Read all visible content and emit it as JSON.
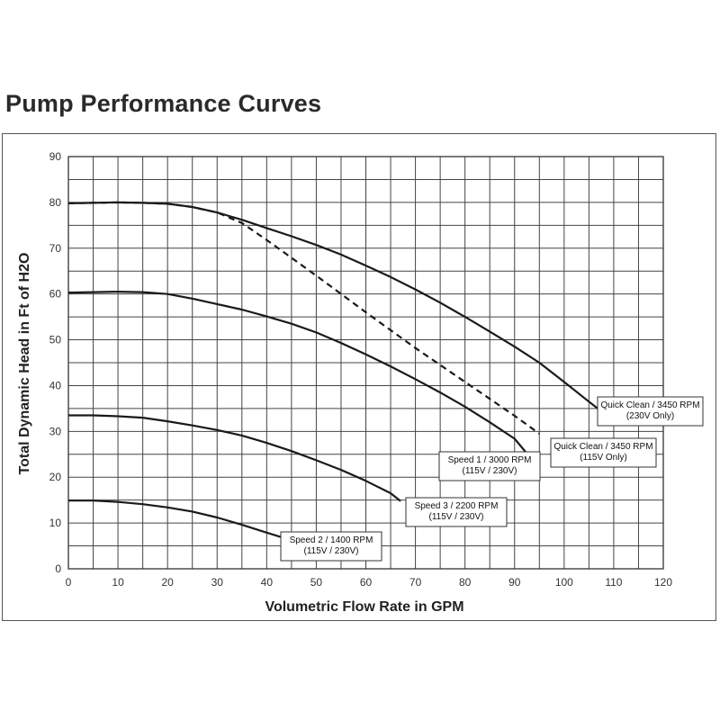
{
  "page_title": "Pump Performance Curves",
  "chart_data": {
    "type": "line",
    "xlabel": "Volumetric Flow Rate in GPM",
    "ylabel": "Total Dynamic Head in Ft of H2O",
    "xlim": [
      0,
      120
    ],
    "ylim": [
      0,
      90
    ],
    "x_ticks": [
      0,
      10,
      20,
      30,
      40,
      50,
      60,
      70,
      80,
      90,
      100,
      110,
      120
    ],
    "y_ticks": [
      0,
      10,
      20,
      30,
      40,
      50,
      60,
      70,
      80,
      90
    ],
    "grid_x_step": 5,
    "grid_y_step": 5,
    "grid": true,
    "series": [
      {
        "name": "Quick Clean / 3450 RPM",
        "label_lines": [
          "Quick Clean / 3450 RPM",
          "(230V Only)"
        ],
        "style": "solid",
        "x": [
          0,
          5,
          10,
          15,
          20,
          25,
          30,
          35,
          40,
          45,
          50,
          55,
          60,
          65,
          70,
          75,
          80,
          85,
          90,
          95,
          100,
          105,
          107
        ],
        "y": [
          79.8,
          79.9,
          80.0,
          79.9,
          79.7,
          79.0,
          77.8,
          76.2,
          74.4,
          72.6,
          70.7,
          68.6,
          66.2,
          63.7,
          61.0,
          58.1,
          55.0,
          51.8,
          48.5,
          45.0,
          40.8,
          36.5,
          34.8
        ]
      },
      {
        "name": "Quick Clean / 3450 RPM",
        "label_lines": [
          "Quick Clean / 3450 RPM",
          "(115V Only)"
        ],
        "style": "dashed",
        "x": [
          0,
          5,
          10,
          15,
          20,
          25,
          30,
          35,
          40,
          50,
          60,
          70,
          80,
          90,
          95
        ],
        "y": [
          79.8,
          79.9,
          80.0,
          79.9,
          79.7,
          79.0,
          77.8,
          75.5,
          71.8,
          64.0,
          56.0,
          48.2,
          40.8,
          33.4,
          29.5
        ]
      },
      {
        "name": "Speed 1 / 3000 RPM",
        "label_lines": [
          "Speed 1 / 3000 RPM",
          "(115V / 230V)"
        ],
        "style": "solid",
        "x": [
          0,
          5,
          10,
          15,
          20,
          25,
          30,
          35,
          40,
          45,
          50,
          55,
          60,
          65,
          70,
          75,
          80,
          85,
          90,
          93
        ],
        "y": [
          60.3,
          60.4,
          60.5,
          60.4,
          60.0,
          59.0,
          57.8,
          56.6,
          55.1,
          53.5,
          51.6,
          49.3,
          46.8,
          44.2,
          41.4,
          38.5,
          35.4,
          32.0,
          28.4,
          24.5
        ]
      },
      {
        "name": "Speed 3 / 2200 RPM",
        "label_lines": [
          "Speed 3 / 2200 RPM",
          "(115V / 230V)"
        ],
        "style": "solid",
        "x": [
          0,
          5,
          10,
          15,
          20,
          25,
          30,
          35,
          40,
          45,
          50,
          55,
          60,
          65,
          67
        ],
        "y": [
          33.5,
          33.5,
          33.3,
          33.0,
          32.2,
          31.3,
          30.3,
          29.1,
          27.5,
          25.7,
          23.7,
          21.6,
          19.2,
          16.5,
          14.8
        ]
      },
      {
        "name": "Speed 2 / 1400 RPM",
        "label_lines": [
          "Speed 2 / 1400 RPM",
          "(115V / 230V)"
        ],
        "style": "solid",
        "x": [
          0,
          5,
          10,
          15,
          20,
          25,
          30,
          35,
          40,
          43
        ],
        "y": [
          14.9,
          14.9,
          14.6,
          14.1,
          13.4,
          12.5,
          11.2,
          9.6,
          7.9,
          6.9
        ]
      }
    ]
  }
}
